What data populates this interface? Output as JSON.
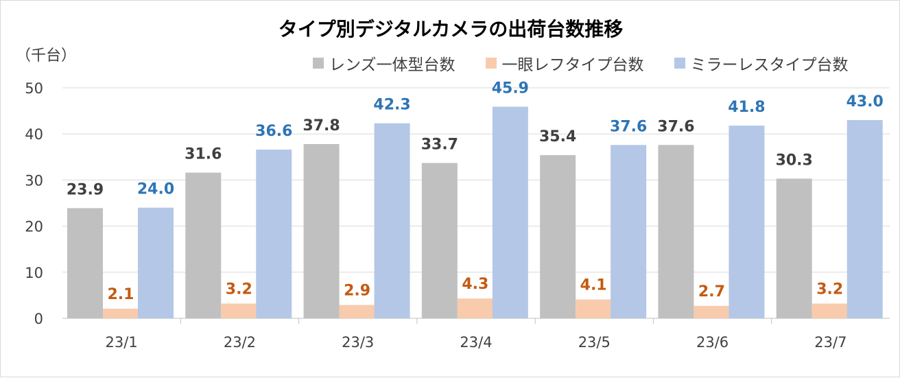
{
  "chart_data": {
    "type": "bar",
    "title": "タイプ別デジタルカメラの出荷台数推移",
    "ylabel": "（千台）",
    "ylim": [
      0,
      50
    ],
    "yticks": [
      0,
      10,
      20,
      30,
      40,
      50
    ],
    "grid": true,
    "legend_position": "top-right",
    "categories": [
      "23/1",
      "23/2",
      "23/3",
      "23/4",
      "23/5",
      "23/6",
      "23/7"
    ],
    "series": [
      {
        "name": "レンズ一体型台数",
        "color": "#c0c0c0",
        "label_color": "#404040",
        "values": [
          23.9,
          31.6,
          37.8,
          33.7,
          35.4,
          37.6,
          30.3
        ]
      },
      {
        "name": "一眼レフタイプ台数",
        "color": "#f8cbad",
        "label_color": "#c55a11",
        "values": [
          2.1,
          3.2,
          2.9,
          4.3,
          4.1,
          2.7,
          3.2
        ]
      },
      {
        "name": "ミラーレスタイプ台数",
        "color": "#b4c7e7",
        "label_color": "#2e75b6",
        "values": [
          24.0,
          36.6,
          42.3,
          45.9,
          37.6,
          41.8,
          43.0
        ]
      }
    ]
  }
}
